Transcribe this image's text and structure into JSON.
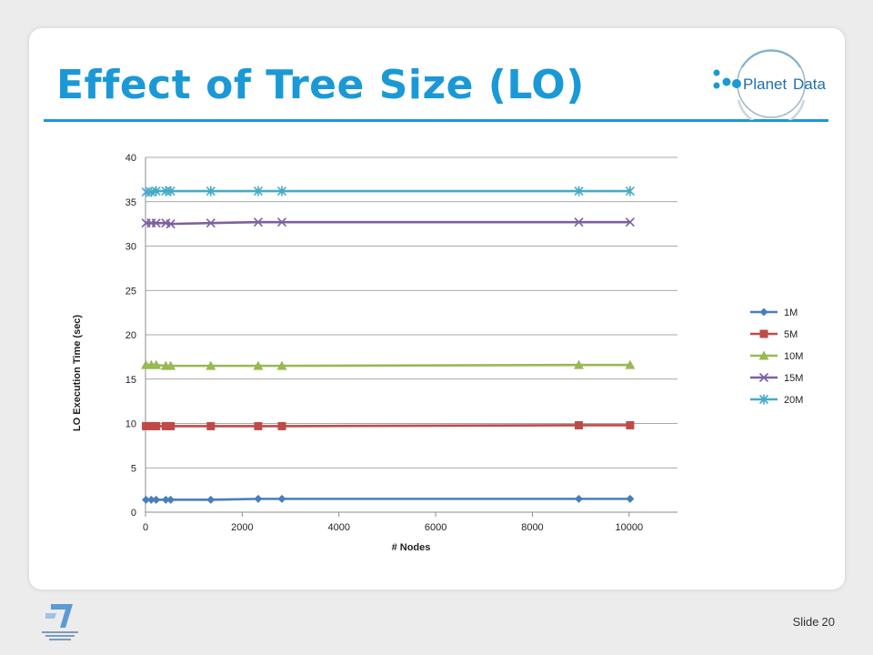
{
  "slide": {
    "title": "Effect of Tree Size (LO)",
    "logo_text_left": "Planet",
    "logo_text_right": "Data",
    "slide_label": "Slide",
    "slide_number": "20",
    "accent_color": "#1a99d6"
  },
  "chart_data": {
    "type": "line",
    "title": "",
    "xlabel": "# Nodes",
    "ylabel": "LO Execution Time (sec)",
    "xlim": [
      0,
      11000
    ],
    "ylim": [
      0,
      40
    ],
    "xticks": [
      0,
      2000,
      4000,
      6000,
      8000,
      10000
    ],
    "yticks": [
      0,
      5,
      10,
      15,
      20,
      25,
      30,
      35,
      40
    ],
    "grid": "horizontal",
    "legend_position": "right",
    "x": [
      10,
      120,
      220,
      420,
      520,
      1350,
      2330,
      2820,
      8960,
      10020
    ],
    "series": [
      {
        "name": "1M",
        "marker": "diamond",
        "color": "#4a7ebb",
        "values": [
          1.4,
          1.4,
          1.4,
          1.4,
          1.4,
          1.4,
          1.5,
          1.5,
          1.5,
          1.5
        ]
      },
      {
        "name": "5M",
        "marker": "square",
        "color": "#be4b48",
        "values": [
          9.7,
          9.7,
          9.7,
          9.7,
          9.7,
          9.7,
          9.7,
          9.7,
          9.8,
          9.8
        ]
      },
      {
        "name": "10M",
        "marker": "triangle",
        "color": "#98b954",
        "values": [
          16.6,
          16.6,
          16.6,
          16.5,
          16.5,
          16.5,
          16.5,
          16.5,
          16.6,
          16.6
        ]
      },
      {
        "name": "15M",
        "marker": "x",
        "color": "#7d60a0",
        "values": [
          32.6,
          32.6,
          32.6,
          32.6,
          32.5,
          32.6,
          32.7,
          32.7,
          32.7,
          32.7
        ]
      },
      {
        "name": "20M",
        "marker": "star",
        "color": "#46aac5",
        "values": [
          36.1,
          36.1,
          36.2,
          36.2,
          36.2,
          36.2,
          36.2,
          36.2,
          36.2,
          36.2
        ]
      }
    ]
  }
}
